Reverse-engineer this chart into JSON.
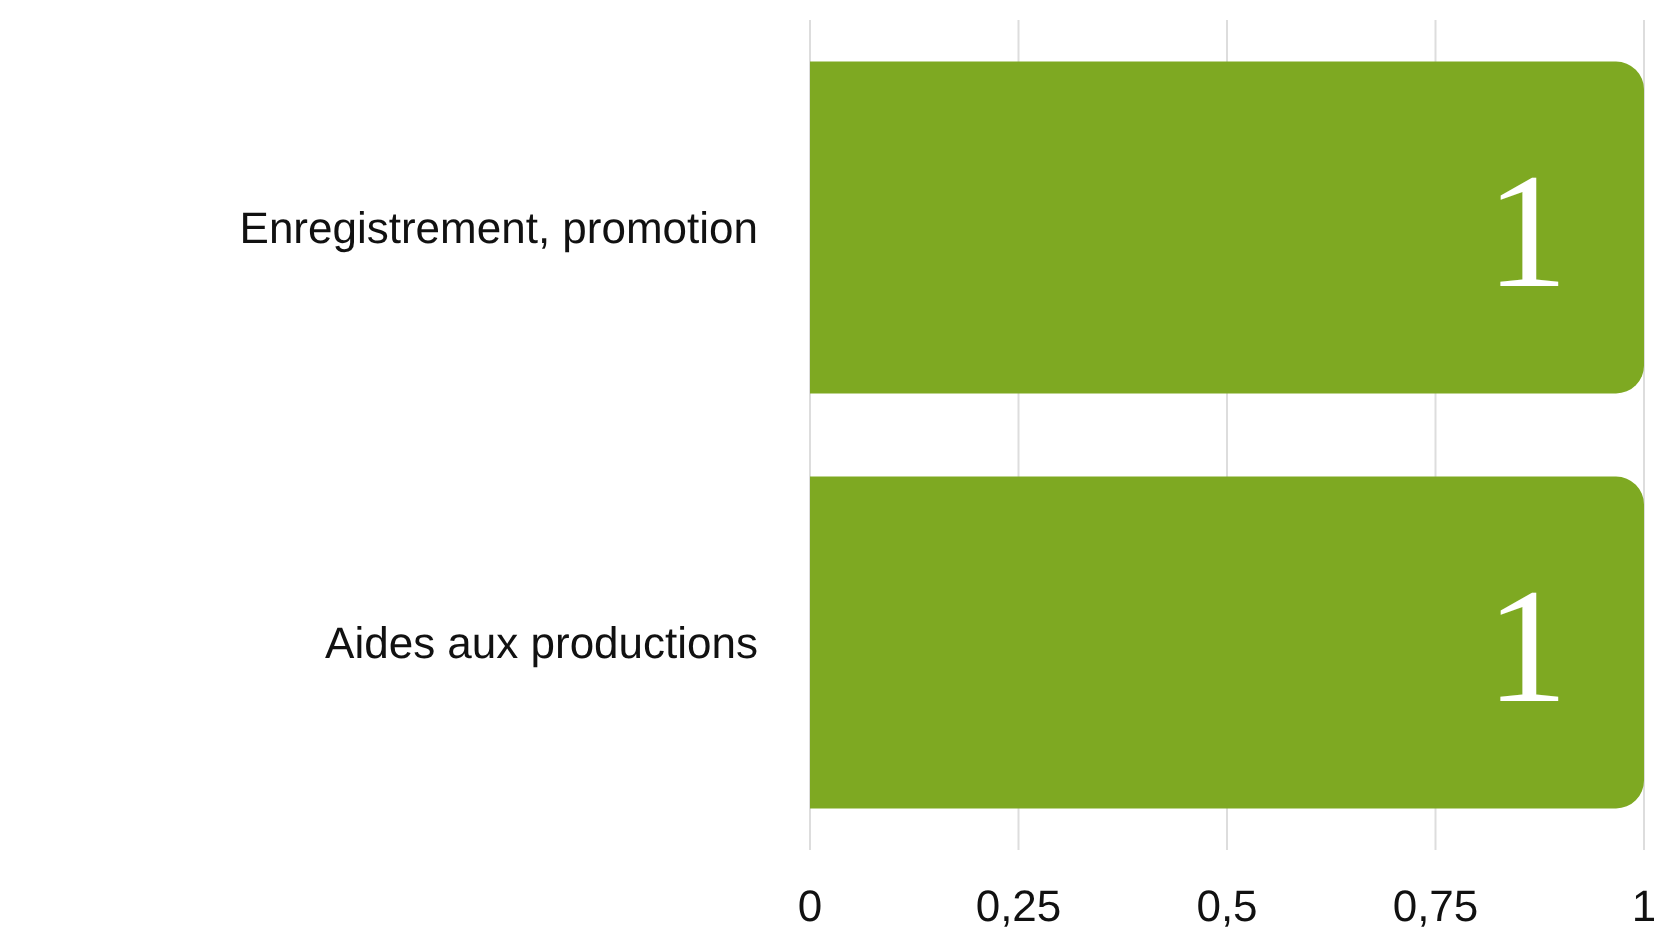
{
  "chart_data": {
    "type": "bar",
    "orientation": "horizontal",
    "categories": [
      "Enregistrement, promotion",
      "Aides aux productions"
    ],
    "values": [
      1,
      1
    ],
    "color": "#7ea922",
    "xlim": [
      0,
      1
    ],
    "xticks": [
      0,
      {
        "value": 0.25,
        "label": "0,25"
      },
      {
        "value": 0.5,
        "label": "0,5"
      },
      {
        "value": 0.75,
        "label": "0,75"
      },
      1
    ],
    "grid": "x",
    "data_labels": true
  }
}
